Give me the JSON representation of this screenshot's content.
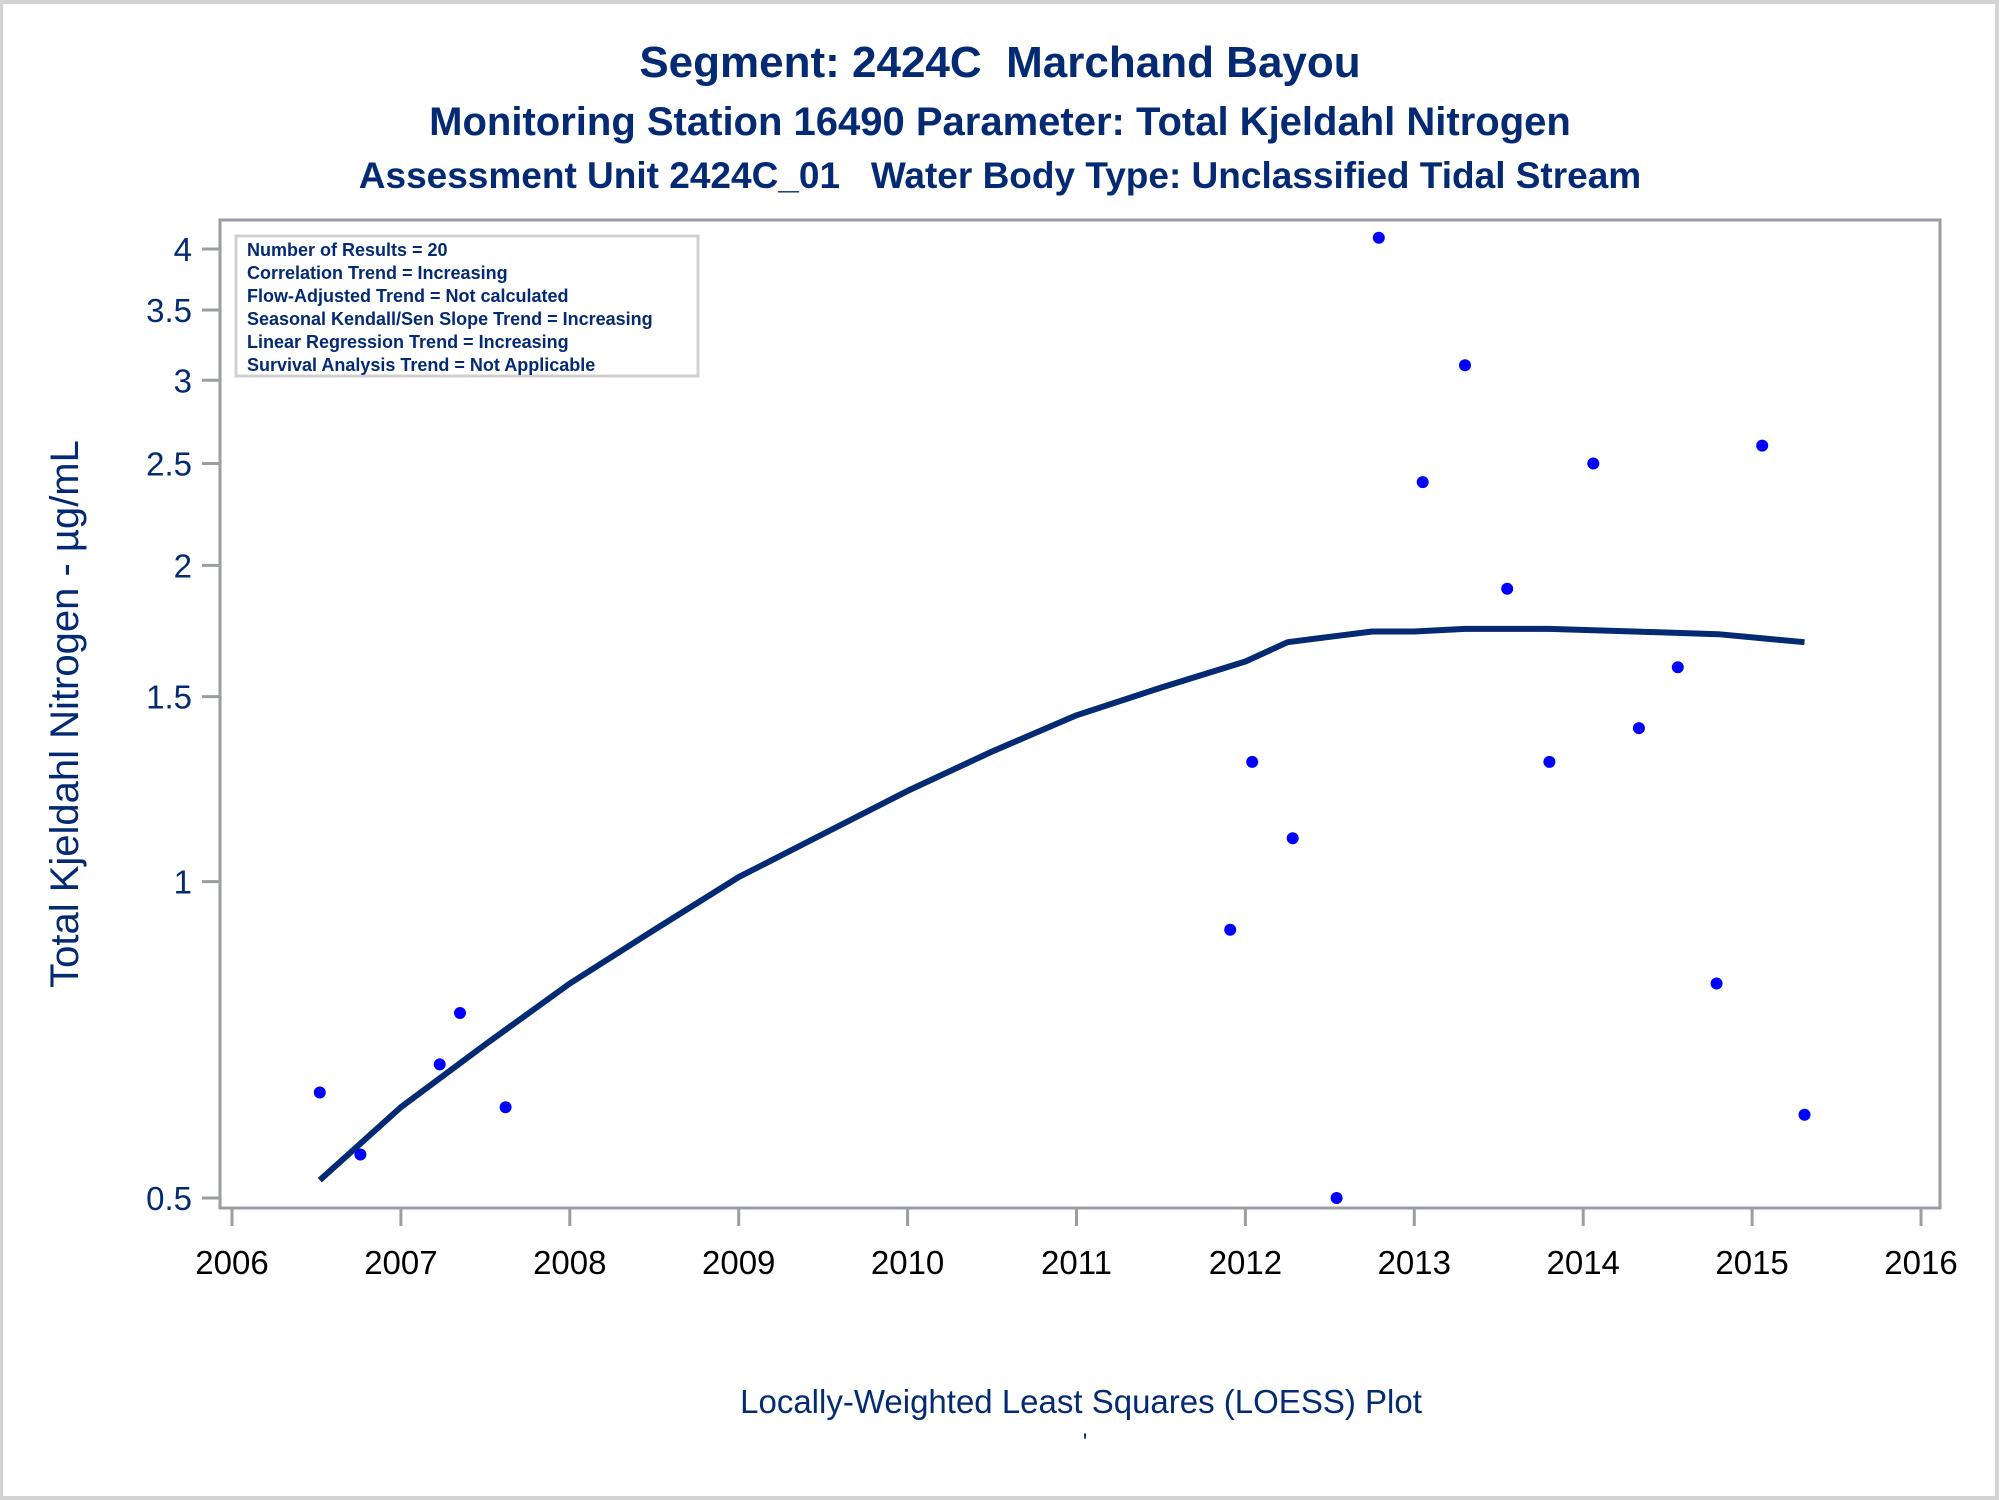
{
  "chart_data": {
    "type": "scatter",
    "title": "Segment: 2424C  Marchand Bayou",
    "subtitle": "Monitoring Station 16490 Parameter: Total Kjeldahl Nitrogen",
    "subtitle2": "Assessment Unit 2424C_01   Water Body Type: Unclassified Tidal Stream",
    "xlabel": "Locally-Weighted Least Squares (LOESS) Plot",
    "xlabel_mark": "'",
    "ylabel": "Total Kjeldahl Nitrogen -  µg/mL",
    "xlim": [
      2006,
      2016
    ],
    "ylim": [
      0.5,
      4.1
    ],
    "yscale": "log",
    "grid": false,
    "xticks": [
      "2006",
      "2007",
      "2008",
      "2009",
      "2010",
      "2011",
      "2012",
      "2013",
      "2014",
      "2015",
      "2016"
    ],
    "yticks": [
      {
        "value": 0.5,
        "label": "0.5"
      },
      {
        "value": 1,
        "label": "1"
      },
      {
        "value": 1.5,
        "label": "1.5"
      },
      {
        "value": 2,
        "label": "2"
      },
      {
        "value": 2.5,
        "label": "2.5"
      },
      {
        "value": 3,
        "label": "3"
      },
      {
        "value": 3.5,
        "label": "3.5"
      },
      {
        "value": 4,
        "label": "4"
      }
    ],
    "legend_placement": "top-left",
    "legend_lines": [
      "Number of Results = 20",
      "Correlation Trend = Increasing",
      "Flow-Adjusted Trend = Not calculated",
      "Seasonal Kendall/Sen Slope Trend = Increasing",
      "Linear Regression Trend = Increasing",
      "Survival Analysis Trend = Not Applicable"
    ],
    "series": [
      {
        "name": "Observations",
        "type": "scatter",
        "color": "#0000ff",
        "points": [
          {
            "x": 2006.52,
            "y": 0.63
          },
          {
            "x": 2006.76,
            "y": 0.55
          },
          {
            "x": 2007.23,
            "y": 0.67
          },
          {
            "x": 2007.35,
            "y": 0.75
          },
          {
            "x": 2007.62,
            "y": 0.61
          },
          {
            "x": 2011.91,
            "y": 0.9
          },
          {
            "x": 2012.04,
            "y": 1.3
          },
          {
            "x": 2012.28,
            "y": 1.1
          },
          {
            "x": 2012.54,
            "y": 0.5
          },
          {
            "x": 2012.79,
            "y": 4.1
          },
          {
            "x": 2013.05,
            "y": 2.4
          },
          {
            "x": 2013.3,
            "y": 3.1
          },
          {
            "x": 2013.55,
            "y": 1.9
          },
          {
            "x": 2013.8,
            "y": 1.3
          },
          {
            "x": 2014.06,
            "y": 2.5
          },
          {
            "x": 2014.33,
            "y": 1.4
          },
          {
            "x": 2014.56,
            "y": 1.6
          },
          {
            "x": 2014.79,
            "y": 0.8
          },
          {
            "x": 2015.06,
            "y": 2.6
          },
          {
            "x": 2015.31,
            "y": 0.6
          }
        ]
      },
      {
        "name": "LOESS fit",
        "type": "line",
        "color": "#032a73",
        "points": [
          {
            "x": 2006.52,
            "y": 0.52
          },
          {
            "x": 2007.0,
            "y": 0.61
          },
          {
            "x": 2007.5,
            "y": 0.7
          },
          {
            "x": 2008.0,
            "y": 0.8
          },
          {
            "x": 2008.5,
            "y": 0.9
          },
          {
            "x": 2009.0,
            "y": 1.01
          },
          {
            "x": 2009.5,
            "y": 1.11
          },
          {
            "x": 2010.0,
            "y": 1.22
          },
          {
            "x": 2010.5,
            "y": 1.33
          },
          {
            "x": 2011.0,
            "y": 1.44
          },
          {
            "x": 2011.5,
            "y": 1.53
          },
          {
            "x": 2012.0,
            "y": 1.62
          },
          {
            "x": 2012.25,
            "y": 1.69
          },
          {
            "x": 2012.5,
            "y": 1.71
          },
          {
            "x": 2012.75,
            "y": 1.73
          },
          {
            "x": 2013.0,
            "y": 1.73
          },
          {
            "x": 2013.3,
            "y": 1.74
          },
          {
            "x": 2013.8,
            "y": 1.74
          },
          {
            "x": 2014.3,
            "y": 1.73
          },
          {
            "x": 2014.8,
            "y": 1.72
          },
          {
            "x": 2015.31,
            "y": 1.69
          }
        ]
      }
    ]
  }
}
